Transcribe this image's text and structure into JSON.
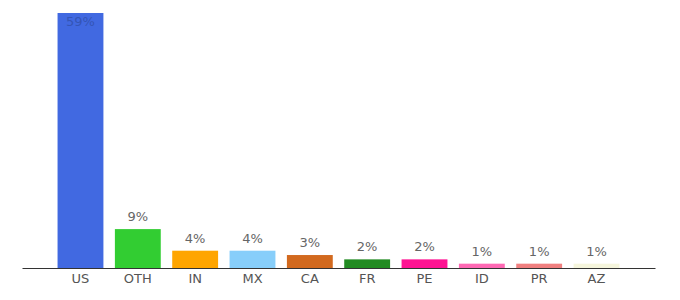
{
  "chart_data": {
    "type": "bar",
    "categories": [
      "US",
      "OTH",
      "IN",
      "MX",
      "CA",
      "FR",
      "PE",
      "ID",
      "PR",
      "AZ"
    ],
    "values": [
      59,
      9,
      4,
      4,
      3,
      2,
      2,
      1,
      1,
      1
    ],
    "value_labels": [
      "59%",
      "9%",
      "4%",
      "4%",
      "3%",
      "2%",
      "2%",
      "1%",
      "1%",
      "1%"
    ],
    "colors": [
      "#4169e1",
      "#32cd32",
      "#ffa500",
      "#87cefa",
      "#d2691e",
      "#228b22",
      "#ff1493",
      "#ff69b4",
      "#f08080",
      "#f5f5dc"
    ],
    "data_labels": true,
    "tick_labels": "x"
  }
}
